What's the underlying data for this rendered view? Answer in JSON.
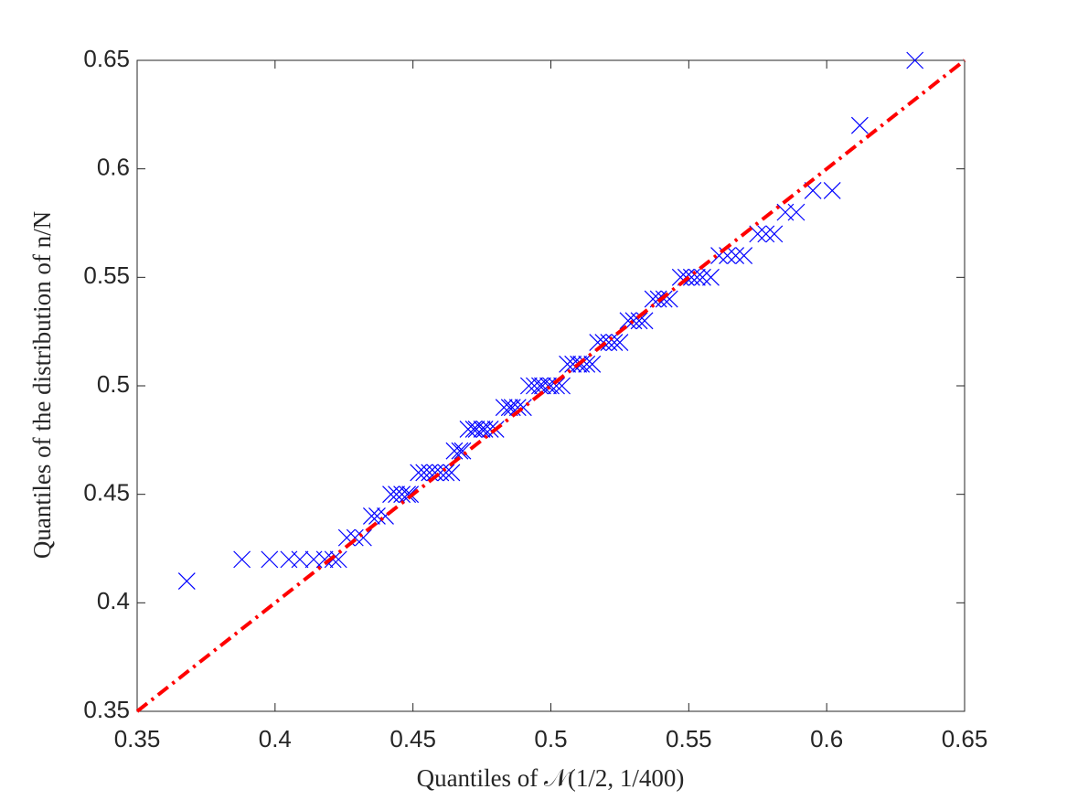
{
  "chart_data": {
    "type": "scatter",
    "xlabel": "Quantiles of 𝒩(1/2, 1/400)",
    "ylabel": "Quantiles of the distribution of n/N",
    "xlim": [
      0.35,
      0.65
    ],
    "ylim": [
      0.35,
      0.65
    ],
    "xticks": [
      0.35,
      0.4,
      0.45,
      0.5,
      0.55,
      0.6,
      0.65
    ],
    "yticks": [
      0.35,
      0.4,
      0.45,
      0.5,
      0.55,
      0.6,
      0.65
    ],
    "series": [
      {
        "marker": "x",
        "color": "#0000ff",
        "x": [
          0.368,
          0.388,
          0.398,
          0.405,
          0.409,
          0.414,
          0.418,
          0.421,
          0.423,
          0.426,
          0.429,
          0.432,
          0.435,
          0.437,
          0.44,
          0.442,
          0.444,
          0.446,
          0.448,
          0.449,
          0.452,
          0.454,
          0.456,
          0.458,
          0.46,
          0.462,
          0.464,
          0.465,
          0.467,
          0.468,
          0.47,
          0.472,
          0.473,
          0.475,
          0.476,
          0.478,
          0.48,
          0.483,
          0.485,
          0.486,
          0.488,
          0.49,
          0.492,
          0.494,
          0.496,
          0.497,
          0.499,
          0.5,
          0.502,
          0.504,
          0.506,
          0.508,
          0.51,
          0.511,
          0.513,
          0.515,
          0.517,
          0.519,
          0.521,
          0.523,
          0.525,
          0.528,
          0.53,
          0.532,
          0.534,
          0.537,
          0.539,
          0.541,
          0.543,
          0.547,
          0.549,
          0.551,
          0.553,
          0.555,
          0.558,
          0.561,
          0.564,
          0.567,
          0.57,
          0.575,
          0.578,
          0.581,
          0.585,
          0.589,
          0.595,
          0.602,
          0.612,
          0.632
        ],
        "values": [
          0.41,
          0.42,
          0.42,
          0.42,
          0.42,
          0.42,
          0.42,
          0.42,
          0.42,
          0.43,
          0.43,
          0.43,
          0.44,
          0.44,
          0.44,
          0.45,
          0.45,
          0.45,
          0.45,
          0.45,
          0.46,
          0.46,
          0.46,
          0.46,
          0.46,
          0.46,
          0.46,
          0.47,
          0.47,
          0.47,
          0.48,
          0.48,
          0.48,
          0.48,
          0.48,
          0.48,
          0.48,
          0.49,
          0.49,
          0.49,
          0.49,
          0.49,
          0.5,
          0.5,
          0.5,
          0.5,
          0.5,
          0.5,
          0.5,
          0.5,
          0.51,
          0.51,
          0.51,
          0.51,
          0.51,
          0.51,
          0.52,
          0.52,
          0.52,
          0.52,
          0.52,
          0.53,
          0.53,
          0.53,
          0.53,
          0.54,
          0.54,
          0.54,
          0.54,
          0.55,
          0.55,
          0.55,
          0.55,
          0.55,
          0.55,
          0.56,
          0.56,
          0.56,
          0.56,
          0.57,
          0.57,
          0.57,
          0.58,
          0.58,
          0.59,
          0.59,
          0.62,
          0.65
        ]
      },
      {
        "marker": "line",
        "dash": "dashdot",
        "color": "#ff0000",
        "x": [
          0.35,
          0.65
        ],
        "values": [
          0.35,
          0.65
        ]
      }
    ]
  }
}
